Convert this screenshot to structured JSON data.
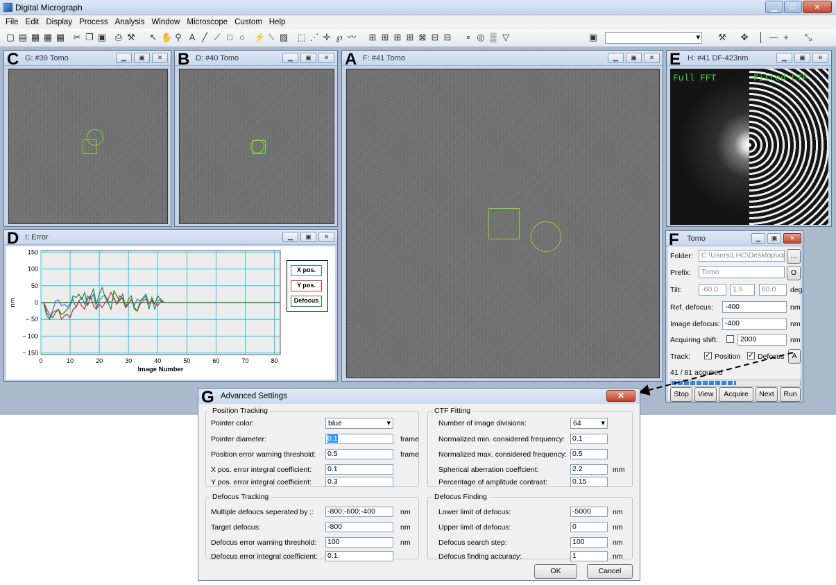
{
  "app": {
    "title": "Digital Micrograph"
  },
  "menu": [
    "File",
    "Edit",
    "Display",
    "Process",
    "Analysis",
    "Window",
    "Microscope",
    "Custom",
    "Help"
  ],
  "panels": {
    "c": {
      "letter": "C",
      "title": "G: #39 Tomo"
    },
    "b": {
      "letter": "B",
      "title": "D: #40 Tomo"
    },
    "a": {
      "letter": "A",
      "title": "F: #41 Tomo"
    },
    "e": {
      "letter": "E",
      "title": "H: #41 DF-423nm",
      "left_label": "Full FFT",
      "right_label": "Fitted CTF"
    },
    "d": {
      "letter": "D",
      "title": "I: Error"
    },
    "f": {
      "letter": "F",
      "title": "Tomo"
    }
  },
  "chart_data": {
    "type": "line",
    "xlabel": "Image Number",
    "ylabel": "nm",
    "xlim": [
      0,
      82
    ],
    "ylim": [
      -155,
      155
    ],
    "xticks": [
      0,
      10,
      20,
      30,
      40,
      50,
      60,
      70,
      80
    ],
    "yticks": [
      150,
      100,
      50,
      0,
      -50,
      -100,
      -150
    ],
    "ytick_labels": [
      "150",
      "100",
      "50",
      "0",
      "− 50",
      "− 100",
      "− 150"
    ],
    "grid": true,
    "legend_position": "right",
    "series": [
      {
        "name": "X pos.",
        "color": "#2a7bd4",
        "x": [
          1,
          2,
          3,
          4,
          5,
          6,
          7,
          8,
          9,
          10,
          11,
          12,
          13,
          14,
          15,
          16,
          17,
          18,
          19,
          20,
          21,
          22,
          23,
          24,
          25,
          26,
          27,
          28,
          29,
          30,
          31,
          32,
          33,
          34,
          35,
          36,
          37,
          38,
          39,
          40,
          41,
          42
        ],
        "values": [
          -2,
          -30,
          -45,
          -25,
          5,
          8,
          -10,
          -5,
          -12,
          -5,
          10,
          -15,
          5,
          15,
          -5,
          20,
          10,
          25,
          -15,
          5,
          18,
          22,
          5,
          0,
          12,
          -5,
          10,
          15,
          -10,
          -5,
          8,
          -8,
          10,
          5,
          15,
          25,
          -5,
          10,
          -20,
          5,
          10,
          3
        ]
      },
      {
        "name": "Y pos.",
        "color": "#d42a2a",
        "x": [
          1,
          2,
          3,
          4,
          5,
          6,
          7,
          8,
          9,
          10,
          11,
          12,
          13,
          14,
          15,
          16,
          17,
          18,
          19,
          20,
          21,
          22,
          23,
          24,
          25,
          26,
          27,
          28,
          29,
          30,
          31,
          32,
          33,
          34,
          35,
          36,
          37,
          38,
          39,
          40,
          41,
          42
        ],
        "values": [
          0,
          -20,
          -35,
          -45,
          -30,
          -20,
          -50,
          -40,
          -35,
          -45,
          -20,
          -15,
          5,
          -10,
          -20,
          10,
          20,
          -10,
          -20,
          -5,
          -15,
          0,
          10,
          30,
          15,
          -5,
          20,
          10,
          -15,
          -5,
          10,
          -15,
          -25,
          -5,
          5,
          10,
          0,
          5,
          -5,
          -10,
          5,
          0
        ]
      },
      {
        "name": "Defocus",
        "color": "#1f8a2a",
        "x": [
          1,
          2,
          3,
          4,
          5,
          6,
          7,
          8,
          9,
          10,
          11,
          12,
          13,
          14,
          15,
          16,
          17,
          18,
          19,
          20,
          21,
          22,
          23,
          24,
          25,
          26,
          27,
          28,
          29,
          30,
          31,
          32,
          33,
          34,
          35,
          36,
          37,
          38,
          39,
          40,
          41,
          42
        ],
        "values": [
          -5,
          -40,
          -50,
          -30,
          -25,
          -20,
          -35,
          -30,
          -20,
          -10,
          20,
          15,
          25,
          10,
          30,
          -10,
          20,
          40,
          -5,
          25,
          45,
          15,
          0,
          -20,
          35,
          20,
          5,
          25,
          -15,
          10,
          20,
          -20,
          -25,
          5,
          10,
          20,
          -20,
          15,
          -5,
          20,
          10,
          0
        ]
      }
    ]
  },
  "tomo": {
    "folder_label": "Folder:",
    "folder_value": "C:\\Users\\LHC\\Desktop\\xxxx",
    "folder_btn": "...",
    "prefix_label": "Prefix:",
    "prefix_value": "Tomo",
    "prefix_btn": "O",
    "tilt_label": "Tilt:",
    "tilt_start": "-60.0",
    "tilt_step": "1.5",
    "tilt_end": "60.0",
    "tilt_unit": "deg",
    "ref_label": "Ref. defocus:",
    "ref_value": "-400",
    "ref_unit": "nm",
    "img_label": "Image defocus:",
    "img_value": "-400",
    "img_unit": "nm",
    "shift_label": "Acquiring shift:",
    "shift_value": "2000",
    "shift_unit": "nm",
    "track_label": "Track:",
    "track_position": "Position",
    "track_defocus": "Defocus",
    "track_btn": "A",
    "status": "41 / 81  acquired",
    "progress": 0.506,
    "buttons": [
      "Stop",
      "View",
      "Acquire",
      "Next",
      "Run"
    ]
  },
  "adv": {
    "letter": "G",
    "title": "Advanced Settings",
    "pos": {
      "title": "Position Tracking",
      "rows": [
        {
          "label": "Pointer color:",
          "value": "blue",
          "unit": ""
        },
        {
          "label": "Pointer diameter:",
          "value": "0.1",
          "unit": "frame"
        },
        {
          "label": "Position error warning threshold:",
          "value": "0.5",
          "unit": "frame"
        },
        {
          "label": "X pos. error integral coefficient:",
          "value": "0.1",
          "unit": ""
        },
        {
          "label": "Y pos. error integral coefficient:",
          "value": "0.3",
          "unit": ""
        }
      ]
    },
    "ctf": {
      "title": "CTF Fitting",
      "rows": [
        {
          "label": "Number of image divisions:",
          "value": "64",
          "unit": ""
        },
        {
          "label": "Normalized min. considered frequency:",
          "value": "0.1",
          "unit": ""
        },
        {
          "label": "Normalized max. considered frequency:",
          "value": "0.5",
          "unit": ""
        },
        {
          "label": "Spherical aberration coeffcient:",
          "value": "2.2",
          "unit": "mm"
        },
        {
          "label": "Percentage of amplitude contrast:",
          "value": "0.15",
          "unit": ""
        }
      ]
    },
    "def": {
      "title": "Defocus Tracking",
      "rows": [
        {
          "label": "Multiple defoucs seperated by ;:",
          "value": "-800;-600;-400",
          "unit": "nm"
        },
        {
          "label": "Target defocus:",
          "value": "-800",
          "unit": "nm"
        },
        {
          "label": "Defocus error warning threshold:",
          "value": "100",
          "unit": "nm"
        },
        {
          "label": "Defocus error integral coefficient:",
          "value": "0.1",
          "unit": ""
        }
      ]
    },
    "find": {
      "title": "Defocus Finding",
      "rows": [
        {
          "label": "Lower limit of defocus:",
          "value": "-5000",
          "unit": "nm"
        },
        {
          "label": "Upper limit of defocus:",
          "value": "0",
          "unit": "nm"
        },
        {
          "label": "Defocus search step:",
          "value": "100",
          "unit": "nm"
        },
        {
          "label": "Defocus finding accuracy:",
          "value": "1",
          "unit": "nm"
        }
      ]
    },
    "ok": "OK",
    "cancel": "Cancel"
  }
}
